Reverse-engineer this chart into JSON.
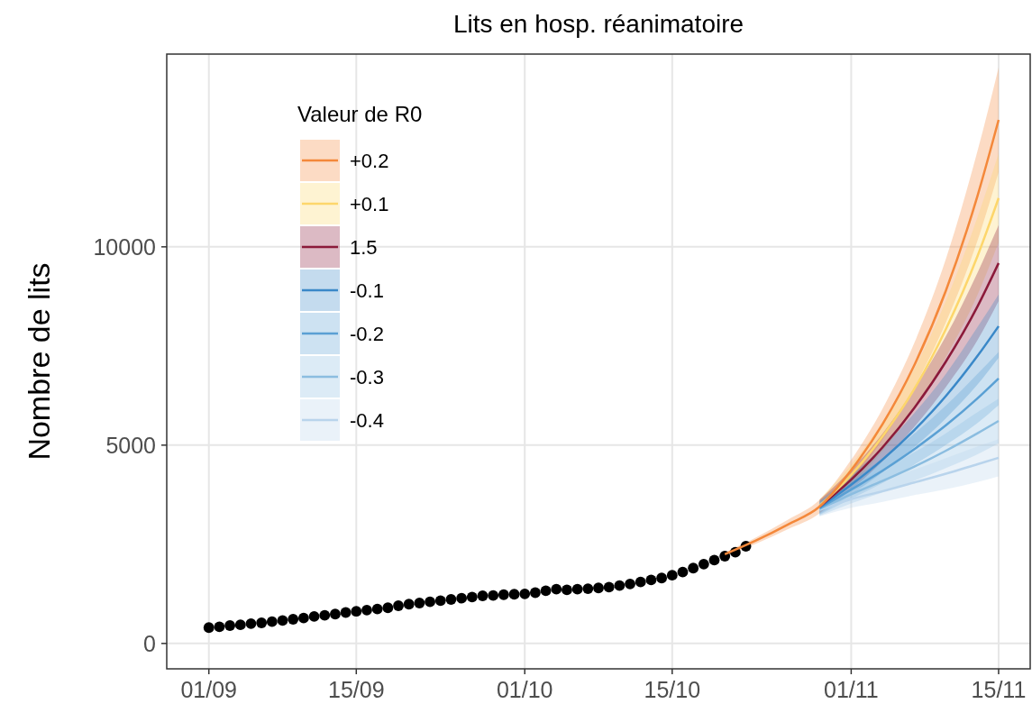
{
  "chart_data": {
    "type": "line",
    "title": "Lits en hosp. réanimatoire",
    "ylabel": "Nombre de lits",
    "legend_title": "Valeur de R0",
    "legend": "top left",
    "grid": true,
    "xlim": [
      "--08-28",
      "--11-18"
    ],
    "ylim": [
      -640,
      14860
    ],
    "xticks": [
      {
        "value": "--09-01",
        "label": "01/09"
      },
      {
        "value": "--09-15",
        "label": "15/09"
      },
      {
        "value": "--10-01",
        "label": "01/10"
      },
      {
        "value": "--10-15",
        "label": "15/10"
      },
      {
        "value": "--11-01",
        "label": "01/11"
      },
      {
        "value": "--11-15",
        "label": "15/11"
      }
    ],
    "yticks": [
      0,
      5000,
      10000
    ],
    "series": [
      {
        "name": "+0.2",
        "color": "#f4883a",
        "x": [
          "--10-20",
          "--10-23",
          "--10-26",
          "--10-29",
          "--11-01",
          "--11-04",
          "--11-07",
          "--11-10",
          "--11-13",
          "--11-15"
        ],
        "values": [
          2250,
          2600,
          3000,
          3450,
          4370,
          5540,
          7020,
          8900,
          11290,
          13200
        ],
        "lower": [
          2200,
          2520,
          2880,
          3280,
          4110,
          5150,
          6460,
          8100,
          10160,
          11880
        ],
        "upper": [
          2300,
          2680,
          3120,
          3620,
          4630,
          5930,
          7580,
          9700,
          12420,
          14520
        ]
      },
      {
        "name": "+0.1",
        "color": "#fdd66b",
        "x": [
          "--10-29",
          "--11-01",
          "--11-04",
          "--11-07",
          "--11-10",
          "--11-13",
          "--11-15"
        ],
        "values": [
          3470,
          4250,
          5230,
          6420,
          7930,
          9770,
          11230
        ],
        "lower": [
          3300,
          4000,
          4860,
          5910,
          7220,
          8790,
          10110
        ],
        "upper": [
          3640,
          4510,
          5600,
          6930,
          8640,
          10750,
          12350
        ]
      },
      {
        "name": "1.5",
        "color": "#8b1a3a",
        "x": [
          "--10-29",
          "--11-01",
          "--11-04",
          "--11-07",
          "--11-10",
          "--11-13",
          "--11-15"
        ],
        "values": [
          3450,
          4130,
          4950,
          5940,
          7110,
          8500,
          9590
        ],
        "lower": [
          3280,
          3880,
          4600,
          5460,
          6470,
          7650,
          8630
        ],
        "upper": [
          3620,
          4380,
          5300,
          6420,
          7750,
          9350,
          10550
        ]
      },
      {
        "name": "-0.1",
        "color": "#3a88c8",
        "x": [
          "--10-29",
          "--11-01",
          "--11-04",
          "--11-07",
          "--11-10",
          "--11-13",
          "--11-15"
        ],
        "values": [
          3430,
          4000,
          4640,
          5380,
          6240,
          7250,
          8000
        ],
        "lower": [
          3260,
          3760,
          4320,
          4950,
          5680,
          6530,
          7200
        ],
        "upper": [
          3600,
          4240,
          4960,
          5810,
          6800,
          7980,
          8800
        ]
      },
      {
        "name": "-0.2",
        "color": "#5aa0d4",
        "x": [
          "--10-29",
          "--11-01",
          "--11-04",
          "--11-07",
          "--11-10",
          "--11-13",
          "--11-15"
        ],
        "values": [
          3410,
          3880,
          4360,
          4900,
          5500,
          6180,
          6680
        ],
        "lower": [
          3240,
          3650,
          4050,
          4510,
          5010,
          5560,
          6010
        ],
        "upper": [
          3580,
          4110,
          4670,
          5290,
          6000,
          6800,
          7350
        ]
      },
      {
        "name": "-0.3",
        "color": "#8bbde0",
        "x": [
          "--10-29",
          "--11-01",
          "--11-04",
          "--11-07",
          "--11-10",
          "--11-13",
          "--11-15"
        ],
        "values": [
          3390,
          3760,
          4100,
          4460,
          4860,
          5300,
          5610
        ],
        "lower": [
          3220,
          3530,
          3810,
          4100,
          4420,
          4770,
          5050
        ],
        "upper": [
          3560,
          3990,
          4390,
          4820,
          5300,
          5830,
          6170
        ]
      },
      {
        "name": "-0.4",
        "color": "#b9d4ec",
        "x": [
          "--10-29",
          "--11-01",
          "--11-04",
          "--11-07",
          "--11-10",
          "--11-13",
          "--11-15"
        ],
        "values": [
          3370,
          3640,
          3840,
          4060,
          4280,
          4520,
          4680
        ],
        "lower": [
          3200,
          3420,
          3570,
          3740,
          3890,
          4070,
          4210
        ],
        "upper": [
          3540,
          3860,
          4110,
          4380,
          4670,
          4970,
          5150
        ]
      },
      {
        "type": "scatter",
        "color": "#000000",
        "marker": "circle",
        "x": [
          "--09-01",
          "--09-02",
          "--09-03",
          "--09-04",
          "--09-05",
          "--09-06",
          "--09-07",
          "--09-08",
          "--09-09",
          "--09-10",
          "--09-11",
          "--09-12",
          "--09-13",
          "--09-14",
          "--09-15",
          "--09-16",
          "--09-17",
          "--09-18",
          "--09-19",
          "--09-20",
          "--09-21",
          "--09-22",
          "--09-23",
          "--09-24",
          "--09-25",
          "--09-26",
          "--09-27",
          "--09-28",
          "--09-29",
          "--09-30",
          "--10-01",
          "--10-02",
          "--10-03",
          "--10-04",
          "--10-05",
          "--10-06",
          "--10-07",
          "--10-08",
          "--10-09",
          "--10-10",
          "--10-11",
          "--10-12",
          "--10-13",
          "--10-14",
          "--10-15",
          "--10-16",
          "--10-17",
          "--10-18",
          "--10-19",
          "--10-20",
          "--10-21",
          "--10-22"
        ],
        "values": [
          400,
          420,
          450,
          470,
          500,
          520,
          550,
          580,
          610,
          640,
          680,
          710,
          740,
          780,
          810,
          840,
          870,
          900,
          950,
          990,
          1020,
          1050,
          1080,
          1110,
          1140,
          1170,
          1200,
          1210,
          1230,
          1240,
          1250,
          1280,
          1330,
          1370,
          1350,
          1370,
          1380,
          1400,
          1420,
          1460,
          1500,
          1550,
          1600,
          1650,
          1720,
          1800,
          1900,
          2000,
          2100,
          2200,
          2300,
          2450
        ]
      }
    ]
  }
}
